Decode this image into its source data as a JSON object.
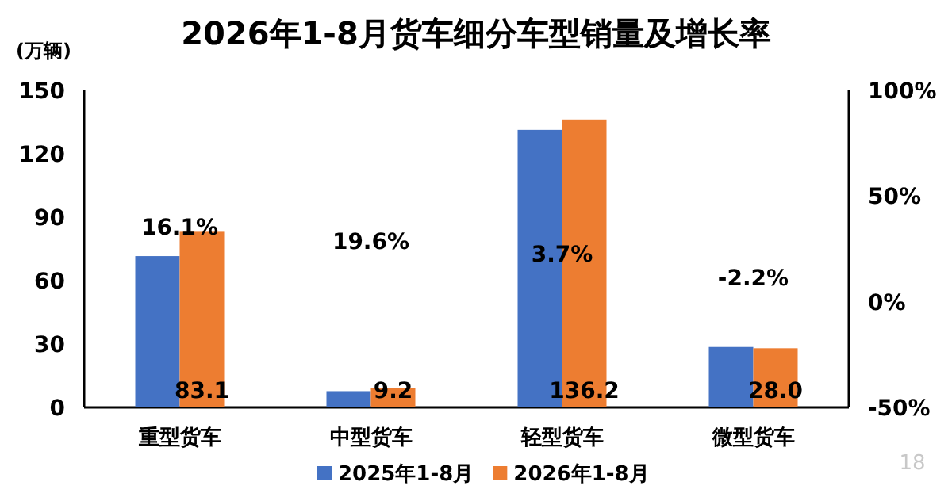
{
  "chart_data": {
    "type": "bar",
    "title": "2026年1-8月货车细分车型销量及增长率",
    "ylabel": "(万辆)",
    "categories": [
      "重型货车",
      "中型货车",
      "轻型货车",
      "微型货车"
    ],
    "series": [
      {
        "name": "2025年1-8月",
        "color": "#4472c4",
        "values": [
          71.6,
          7.7,
          131.3,
          28.6
        ]
      },
      {
        "name": "2026年1-8月",
        "color": "#ed7d31",
        "values": [
          83.1,
          9.2,
          136.2,
          28.0
        ],
        "value_labels": [
          "83.1",
          "9.2",
          "136.2",
          "28.0"
        ]
      }
    ],
    "ylim": [
      0,
      150
    ],
    "yticks": [
      0,
      30,
      60,
      90,
      120,
      150
    ],
    "y2lim": [
      -50,
      100
    ],
    "y2ticks": [
      {
        "value": -50,
        "label": "-50%"
      },
      {
        "value": 0,
        "label": "0%"
      },
      {
        "value": 50,
        "label": "50%"
      },
      {
        "value": 100,
        "label": "100%"
      }
    ],
    "annotations": [
      "16.1%",
      "19.6%",
      "3.7%",
      "-2.2%",
      "18"
    ],
    "legend": "bottom",
    "grid": false
  }
}
